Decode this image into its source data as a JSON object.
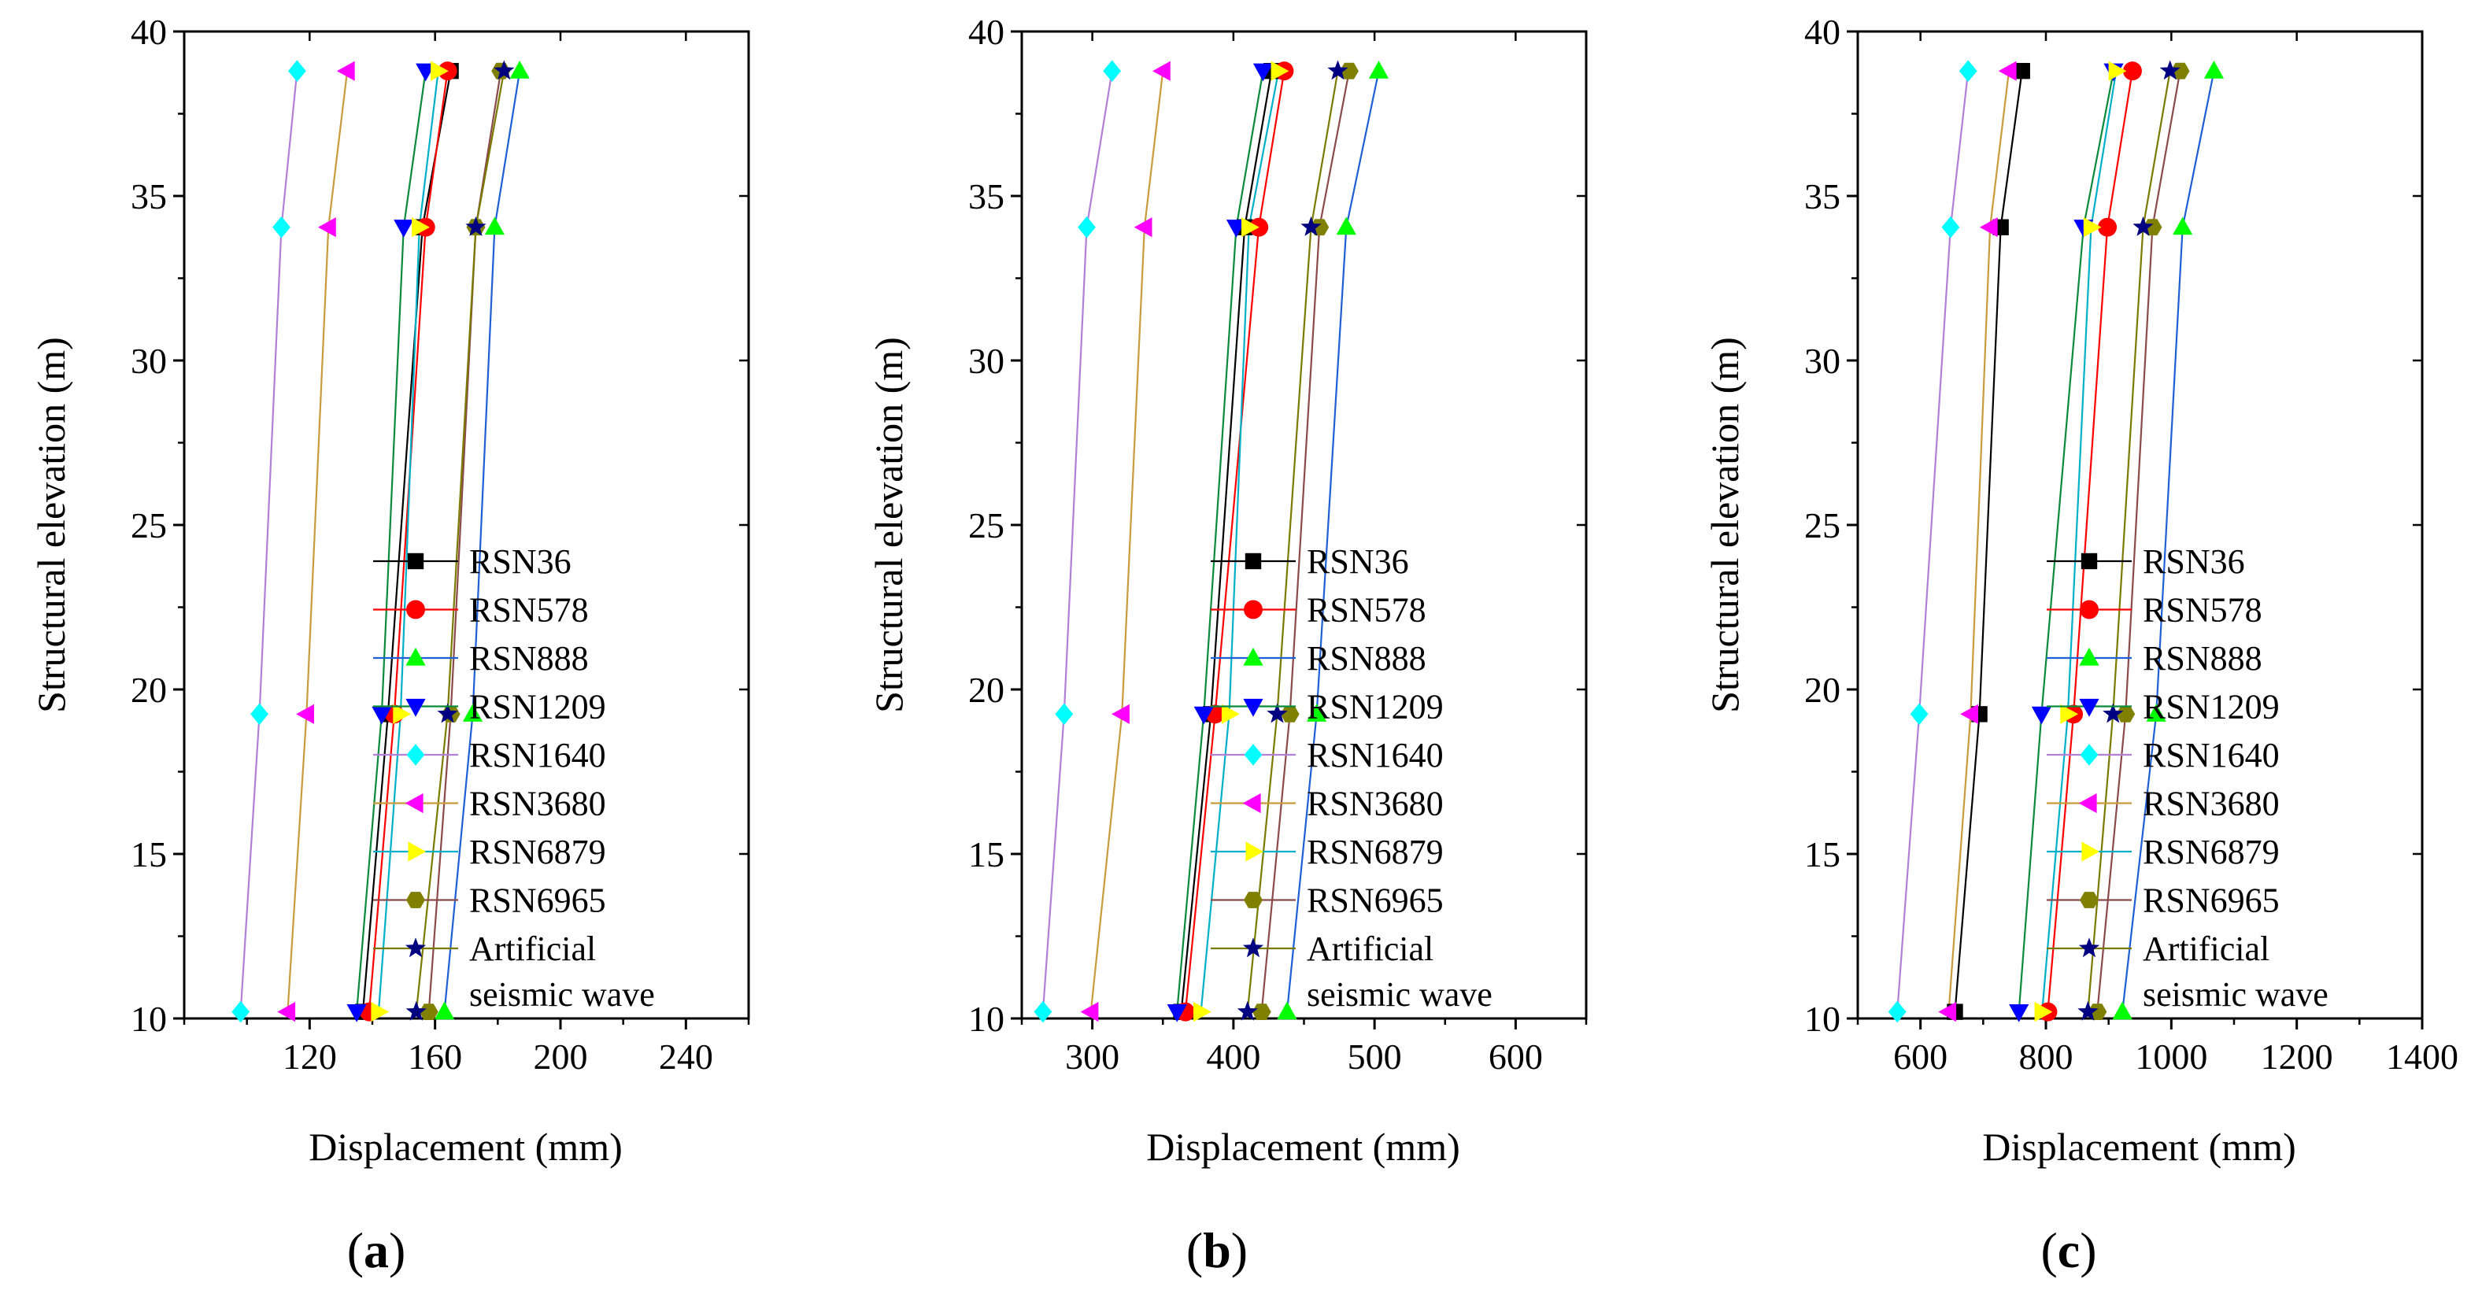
{
  "chart_data": [
    {
      "type": "line",
      "panel_label": "a",
      "xlabel": "Displacement (mm)",
      "ylabel": "Structural elevation (m)",
      "xlim": [
        80,
        260
      ],
      "ylim": [
        10,
        40
      ],
      "xticks": [
        120,
        160,
        200,
        240
      ],
      "yticks": [
        10,
        15,
        20,
        25,
        30,
        35,
        40
      ],
      "y": [
        10.2,
        19.25,
        34.05,
        38.8
      ],
      "series": [
        {
          "name": "RSN36",
          "x": [
            137,
            145,
            156,
            165
          ]
        },
        {
          "name": "RSN578",
          "x": [
            139,
            147,
            157,
            164
          ]
        },
        {
          "name": "RSN888",
          "x": [
            163,
            172,
            179,
            187
          ]
        },
        {
          "name": "RSN1209",
          "x": [
            135,
            143,
            150,
            157
          ]
        },
        {
          "name": "RSN1640",
          "x": [
            98,
            104,
            111,
            116
          ]
        },
        {
          "name": "RSN3680",
          "x": [
            113,
            119,
            126,
            132
          ]
        },
        {
          "name": "RSN6879",
          "x": [
            142,
            149,
            155,
            161
          ]
        },
        {
          "name": "RSN6965",
          "x": [
            158,
            165,
            173,
            181
          ]
        },
        {
          "name": "Artificial seismic wave",
          "x": [
            154,
            164,
            173,
            182
          ]
        }
      ]
    },
    {
      "type": "line",
      "panel_label": "b",
      "xlabel": "Displacement (mm)",
      "ylabel": "Structural elevation (m)",
      "xlim": [
        250,
        650
      ],
      "ylim": [
        10,
        40
      ],
      "xticks": [
        300,
        400,
        500,
        600
      ],
      "yticks": [
        10,
        15,
        20,
        25,
        30,
        35,
        40
      ],
      "y": [
        10.2,
        19.25,
        34.05,
        38.8
      ],
      "series": [
        {
          "name": "RSN36",
          "x": [
            363,
            384,
            408,
            427
          ]
        },
        {
          "name": "RSN578",
          "x": [
            366,
            387,
            418,
            436
          ]
        },
        {
          "name": "RSN888",
          "x": [
            438,
            459,
            480,
            503
          ]
        },
        {
          "name": "RSN1209",
          "x": [
            360,
            379,
            402,
            421
          ]
        },
        {
          "name": "RSN1640",
          "x": [
            265,
            280,
            296,
            314
          ]
        },
        {
          "name": "RSN3680",
          "x": [
            299,
            321,
            337,
            350
          ]
        },
        {
          "name": "RSN6879",
          "x": [
            377,
            397,
            411,
            432
          ]
        },
        {
          "name": "RSN6965",
          "x": [
            420,
            440,
            461,
            482
          ]
        },
        {
          "name": "Artificial seismic wave",
          "x": [
            410,
            431,
            455,
            474
          ]
        }
      ]
    },
    {
      "type": "line",
      "panel_label": "c",
      "xlabel": "Displacement (mm)",
      "ylabel": "Structural elevation (m)",
      "xlim": [
        500,
        1400
      ],
      "ylim": [
        10,
        40
      ],
      "xticks": [
        600,
        800,
        1000,
        1200,
        1400
      ],
      "yticks": [
        10,
        15,
        20,
        25,
        30,
        35,
        40
      ],
      "y": [
        10.2,
        19.25,
        34.05,
        38.8
      ],
      "series": [
        {
          "name": "RSN36",
          "x": [
            655,
            694,
            728,
            762
          ]
        },
        {
          "name": "RSN578",
          "x": [
            803,
            844,
            898,
            938
          ]
        },
        {
          "name": "RSN888",
          "x": [
            922,
            976,
            1018,
            1068
          ]
        },
        {
          "name": "RSN1209",
          "x": [
            757,
            793,
            860,
            908
          ]
        },
        {
          "name": "RSN1640",
          "x": [
            563,
            598,
            648,
            676
          ]
        },
        {
          "name": "RSN3680",
          "x": [
            645,
            680,
            711,
            741
          ]
        },
        {
          "name": "RSN6879",
          "x": [
            794,
            835,
            872,
            912
          ]
        },
        {
          "name": "RSN6965",
          "x": [
            882,
            927,
            970,
            1014
          ]
        },
        {
          "name": "Artificial seismic wave",
          "x": [
            867,
            907,
            955,
            998
          ]
        }
      ]
    }
  ],
  "legend": {
    "entries": [
      "RSN36",
      "RSN578",
      "RSN888",
      "RSN1209",
      "RSN1640",
      "RSN3680",
      "RSN6879",
      "RSN6965",
      "Artificial"
    ],
    "last_entry_line2": "seismic wave"
  },
  "styles": [
    {
      "marker": "square",
      "fill": "#000000",
      "line": "#000000"
    },
    {
      "marker": "circle",
      "fill": "#ff0000",
      "line": "#ff0000"
    },
    {
      "marker": "triangle-up",
      "fill": "#00ff00",
      "line": "#1f5fd6"
    },
    {
      "marker": "triangle-down",
      "fill": "#0000ff",
      "line": "#0a8a3a"
    },
    {
      "marker": "diamond",
      "fill": "#00ffff",
      "line": "#b27fd6"
    },
    {
      "marker": "triangle-left",
      "fill": "#ff00ff",
      "line": "#c89b3c"
    },
    {
      "marker": "triangle-right",
      "fill": "#ffff00",
      "line": "#00b0c8"
    },
    {
      "marker": "hexagon",
      "fill": "#808000",
      "line": "#8b4a4a"
    },
    {
      "marker": "star",
      "fill": "#000080",
      "line": "#7a7a00"
    }
  ]
}
